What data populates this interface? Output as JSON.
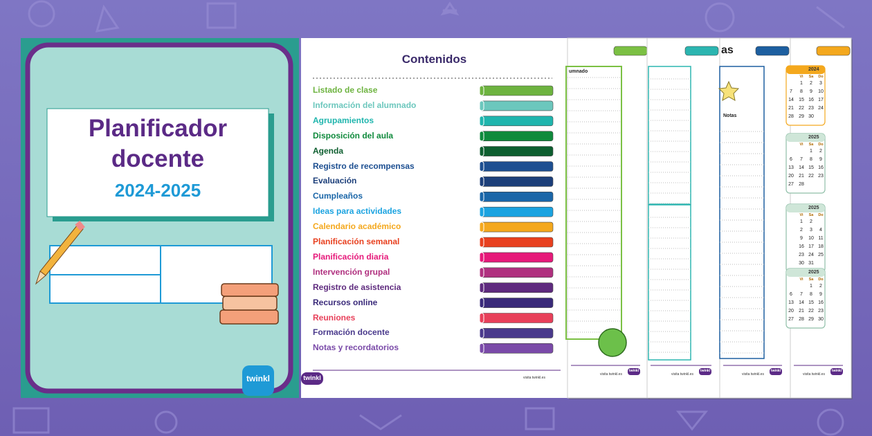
{
  "cover": {
    "title": "Planificador docente",
    "years": "2024-2025"
  },
  "logo": "twinkl",
  "footer": "visita twinkl.es",
  "contents": {
    "title": "Contenidos",
    "items": [
      {
        "label": "Listado de clase",
        "color": "#6db33f"
      },
      {
        "label": "Información del alumnado",
        "color": "#6cc7bd"
      },
      {
        "label": "Agrupamientos",
        "color": "#1fb5ad"
      },
      {
        "label": "Disposición del aula",
        "color": "#0f8a3c"
      },
      {
        "label": "Agenda",
        "color": "#0d5e2f"
      },
      {
        "label": "Registro de recompensas",
        "color": "#1d4f91"
      },
      {
        "label": "Evaluación",
        "color": "#1c3f7a"
      },
      {
        "label": "Cumpleaños",
        "color": "#1a66a8"
      },
      {
        "label": "Ideas para actividades",
        "color": "#1ba3e0"
      },
      {
        "label": "Calendario académico",
        "color": "#f4a81d"
      },
      {
        "label": "Planificación semanal",
        "color": "#e8401f"
      },
      {
        "label": "Planificación diaria",
        "color": "#e6197a"
      },
      {
        "label": "Intervención grupal",
        "color": "#b0307f"
      },
      {
        "label": "Registro de asistencia",
        "color": "#5e2a7e"
      },
      {
        "label": "Recursos online",
        "color": "#3a2a7a"
      },
      {
        "label": "Reuniones",
        "color": "#e8405a"
      },
      {
        "label": "Formación docente",
        "color": "#4a3a8c"
      },
      {
        "label": "Notas y recordatorios",
        "color": "#7a4aa8"
      }
    ]
  },
  "pages": [
    {
      "heading": "umnado",
      "color": "#7bc043"
    },
    {
      "color": "#2bb5b0"
    },
    {
      "heading": "as",
      "subheading": "Notas",
      "color": "#1d5fa0"
    },
    {
      "color": "#f4a81d",
      "calendars": [
        {
          "year": "2024",
          "days": [
            "Vi",
            "Sa",
            "Do"
          ],
          "rows": [
            [
              null,
              "1",
              "2",
              "3"
            ],
            [
              "7",
              "8",
              "9",
              "10"
            ],
            [
              "14",
              "15",
              "16",
              "17"
            ],
            [
              "21",
              "22",
              "23",
              "24"
            ],
            [
              "28",
              "29",
              "30",
              null
            ]
          ]
        },
        {
          "year": "2025",
          "days": [
            "Vi",
            "Sa",
            "Do"
          ],
          "rows": [
            [
              null,
              null,
              "1",
              "2"
            ],
            [
              "6",
              "7",
              "8",
              "9"
            ],
            [
              "13",
              "14",
              "15",
              "16"
            ],
            [
              "20",
              "21",
              "22",
              "23"
            ],
            [
              "27",
              "28",
              null,
              null
            ]
          ]
        },
        {
          "year": "2025",
          "days": [
            "Vi",
            "Sa",
            "Do"
          ],
          "rows": [
            [
              null,
              "1",
              "2",
              null
            ],
            [
              null,
              "2",
              "3",
              "4"
            ],
            [
              null,
              "9",
              "10",
              "11"
            ],
            [
              null,
              "16",
              "17",
              "18"
            ],
            [
              null,
              "23",
              "24",
              "25"
            ],
            [
              null,
              "30",
              "31",
              null
            ]
          ]
        },
        {
          "year": "2025",
          "days": [
            "Vi",
            "Sa",
            "Do"
          ],
          "rows": [
            [
              null,
              null,
              "1",
              "2"
            ],
            [
              "6",
              "7",
              "8",
              "9"
            ],
            [
              "13",
              "14",
              "15",
              "16"
            ],
            [
              "20",
              "21",
              "22",
              "23"
            ],
            [
              "27",
              "28",
              "29",
              "30"
            ]
          ]
        }
      ]
    }
  ]
}
